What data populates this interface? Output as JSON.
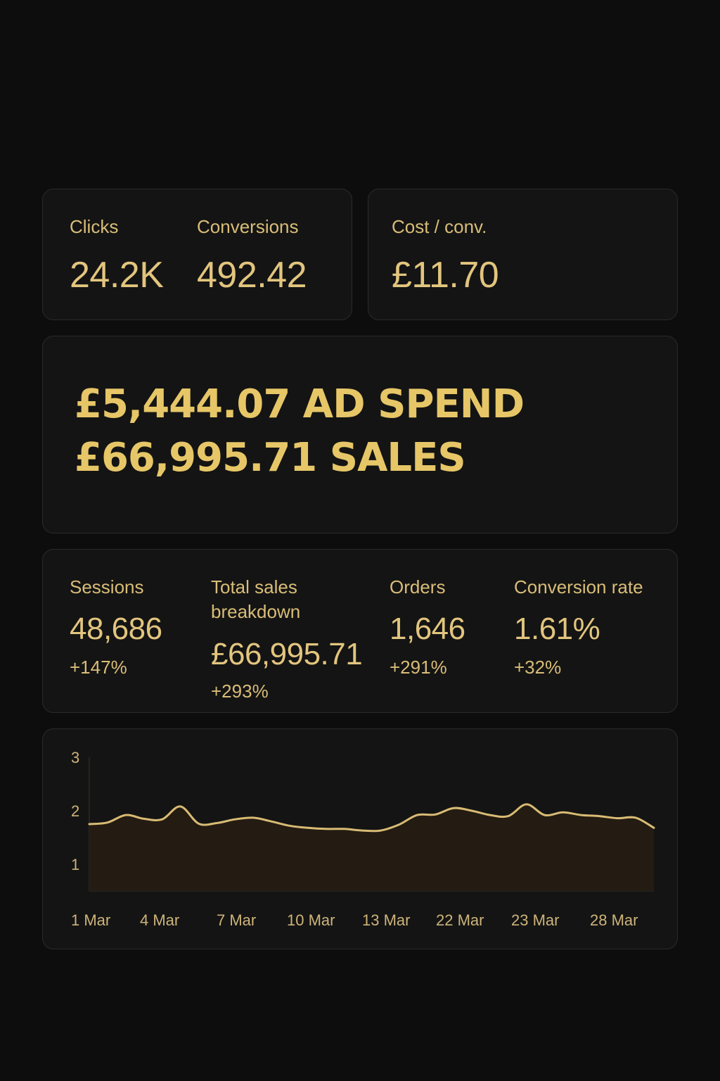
{
  "card_clicks_conv": {
    "clicks": {
      "label": "Clicks",
      "value": "24.2K"
    },
    "conversions": {
      "label": "Conversions",
      "value": "492.42"
    }
  },
  "card_cost": {
    "label": "Cost / conv.",
    "value": "£11.70"
  },
  "hero": {
    "line1": "£5,444.07 AD SPEND",
    "line2": "£66,995.71 SALES"
  },
  "metrics": {
    "sessions": {
      "label": "Sessions",
      "value": "48,686",
      "change": "+147%"
    },
    "total_sales": {
      "label_line1": "Total sales",
      "label_line2": "breakdown",
      "value": "£66,995.71",
      "change": "+293%"
    },
    "orders": {
      "label": "Orders",
      "value": "1,646",
      "change": "+291%"
    },
    "conversion_rate": {
      "label": "Conversion rate",
      "value": "1.61%",
      "change": "+32%"
    }
  },
  "colors": {
    "background": "#0d0d0d",
    "card": "#141414",
    "border": "#2a2a2a",
    "gold": "#e2c57e",
    "area_fill": "#241c12"
  },
  "chart_data": {
    "type": "area",
    "y_ticks": [
      "3",
      "2",
      "1"
    ],
    "ylim": [
      1,
      3
    ],
    "x_tick_labels": [
      "1 Mar",
      "4 Mar",
      "7 Mar",
      "10 Mar",
      "13 Mar",
      "22 Mar",
      "23 Mar",
      "28 Mar"
    ],
    "values": [
      1.75,
      1.78,
      1.92,
      1.85,
      1.84,
      2.08,
      1.76,
      1.77,
      1.84,
      1.87,
      1.8,
      1.72,
      1.68,
      1.66,
      1.66,
      1.63,
      1.63,
      1.74,
      1.92,
      1.93,
      2.05,
      2.0,
      1.92,
      1.9,
      2.12,
      1.92,
      1.97,
      1.92,
      1.9,
      1.86,
      1.87,
      1.68
    ],
    "grid": false,
    "legend": "none"
  }
}
